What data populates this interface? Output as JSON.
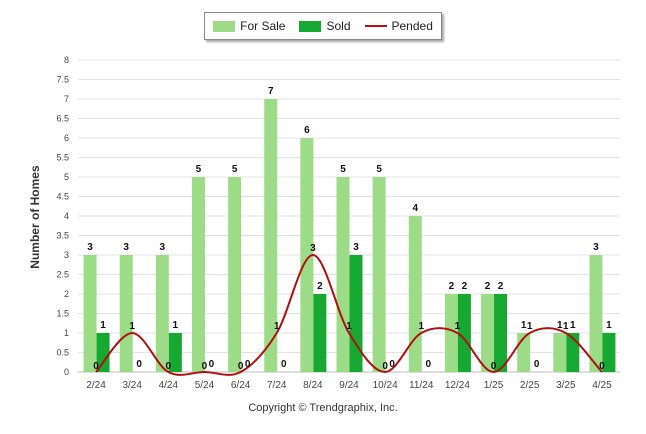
{
  "legend": {
    "for_sale": "For Sale",
    "sold": "Sold",
    "pended": "Pended"
  },
  "footer": {
    "copyright": "Copyright © Trendgraphix, Inc."
  },
  "colors": {
    "for_sale": "#9ddc86",
    "sold": "#17a832",
    "pended": "#b01010",
    "grid": "#e3e3e3"
  },
  "chart_data": {
    "type": "bar",
    "ylabel": "Number of Homes",
    "xlabel": "",
    "ylim": [
      0,
      8
    ],
    "yticks": [
      "0",
      "0.5",
      "1",
      "1.5",
      "2",
      "2.5",
      "3",
      "3.5",
      "4",
      "4.5",
      "5",
      "5.5",
      "6",
      "6.5",
      "7",
      "7.5",
      "8"
    ],
    "grid": true,
    "legend_position": "top-center",
    "categories": [
      "2/24",
      "3/24",
      "4/24",
      "5/24",
      "6/24",
      "7/24",
      "8/24",
      "9/24",
      "10/24",
      "11/24",
      "12/24",
      "1/25",
      "2/25",
      "3/25",
      "4/25"
    ],
    "series": [
      {
        "name": "For Sale",
        "type": "bar",
        "values": [
          3,
          3,
          3,
          5,
          5,
          7,
          6,
          5,
          5,
          4,
          2,
          2,
          1,
          1,
          3
        ]
      },
      {
        "name": "Sold",
        "type": "bar",
        "values": [
          1,
          0,
          1,
          0,
          0,
          0,
          2,
          3,
          0,
          0,
          2,
          2,
          0,
          1,
          1
        ]
      },
      {
        "name": "Pended",
        "type": "line",
        "values": [
          0,
          1,
          0,
          0,
          0,
          1,
          3,
          1,
          0,
          1,
          1,
          0,
          1,
          1,
          0
        ]
      }
    ]
  }
}
